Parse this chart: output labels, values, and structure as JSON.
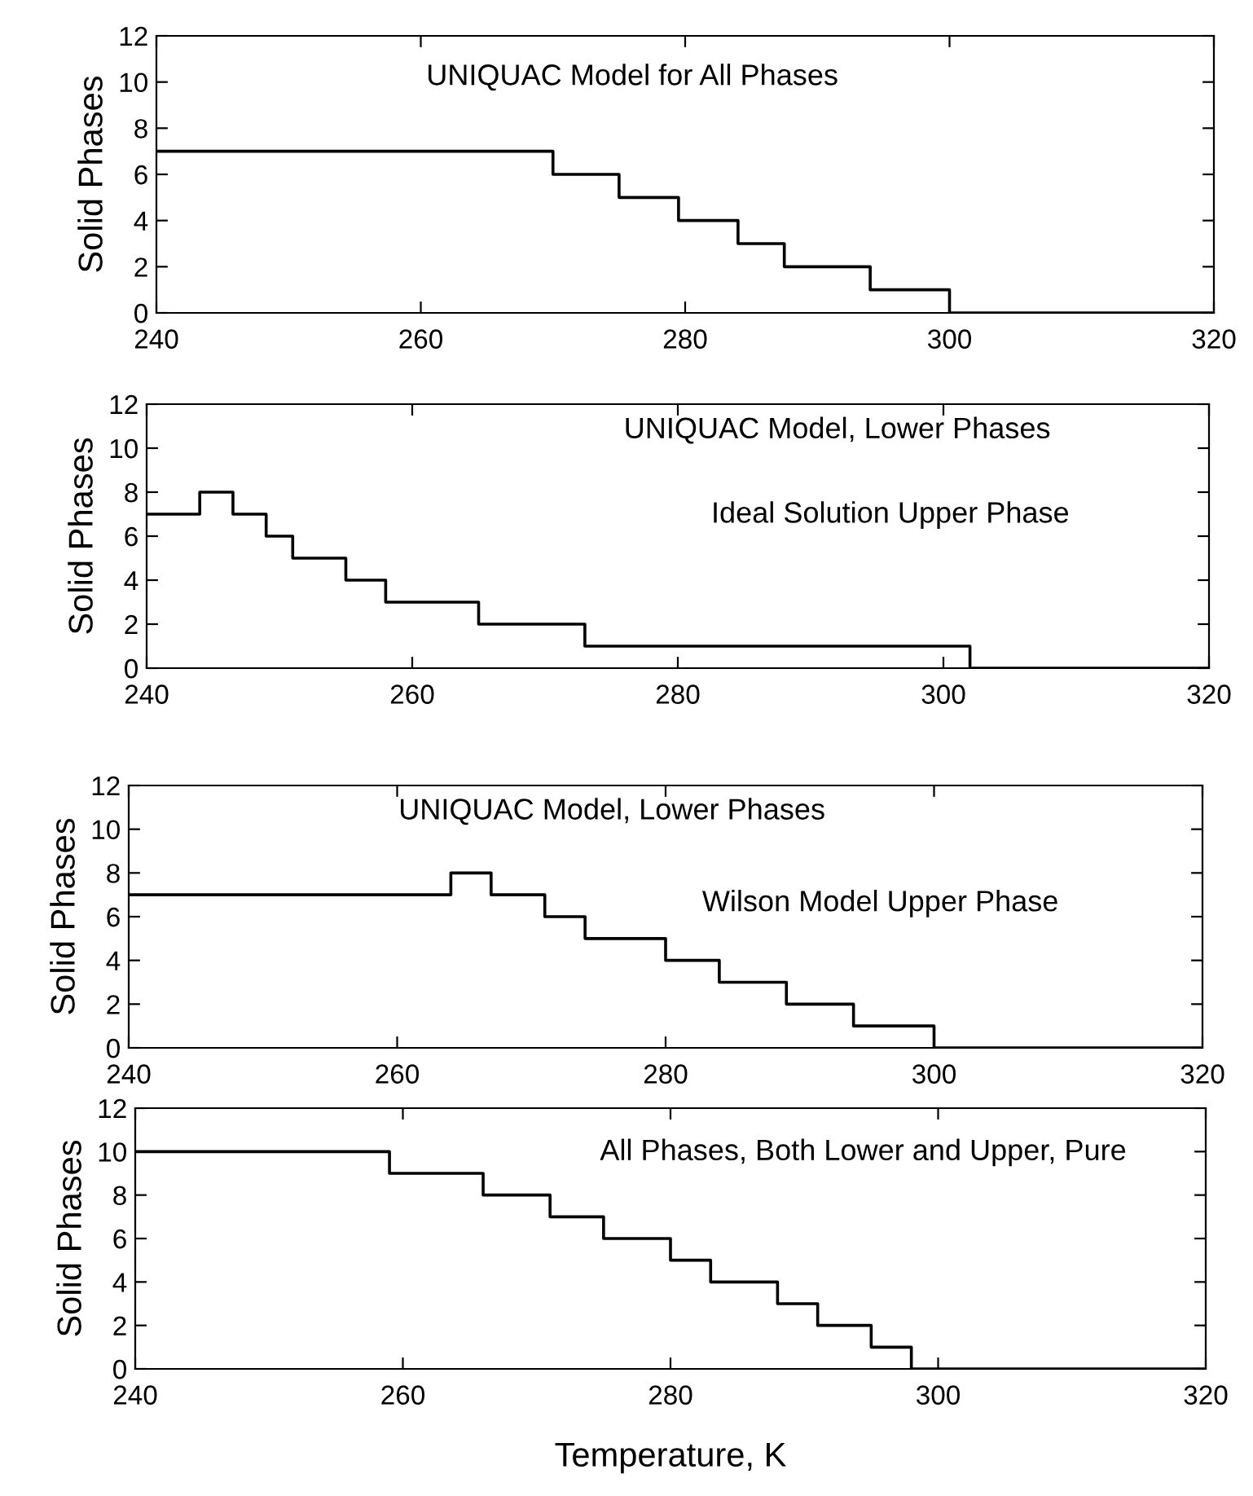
{
  "chart_data": [
    {
      "type": "step",
      "ylabel": "Solid Phases",
      "annotations": [
        "UNIQUAC Model for All Phases"
      ],
      "xlim": [
        240,
        320
      ],
      "xticks": [
        240,
        260,
        280,
        300,
        320
      ],
      "ylim": [
        0,
        12
      ],
      "yticks": [
        0,
        2,
        4,
        6,
        8,
        10,
        12
      ],
      "grid": false,
      "legend": false,
      "series": [
        {
          "color": "#000000",
          "x": [
            240,
            270,
            275,
            279.5,
            284,
            287.5,
            294,
            300,
            320
          ],
          "values": [
            7,
            6,
            5,
            4,
            3,
            2,
            1,
            0,
            0
          ]
        }
      ]
    },
    {
      "type": "step",
      "ylabel": "Solid Phases",
      "annotations": [
        "UNIQUAC Model, Lower Phases",
        "Ideal Solution Upper Phase"
      ],
      "xlim": [
        240,
        320
      ],
      "xticks": [
        240,
        260,
        280,
        300,
        320
      ],
      "ylim": [
        0,
        12
      ],
      "yticks": [
        0,
        2,
        4,
        6,
        8,
        10,
        12
      ],
      "grid": false,
      "legend": false,
      "series": [
        {
          "color": "#000000",
          "x": [
            240,
            244,
            246.5,
            249,
            251,
            255,
            258,
            265,
            273,
            302,
            320
          ],
          "values": [
            7,
            8,
            7,
            6,
            5,
            4,
            3,
            2,
            1,
            0,
            0
          ]
        }
      ]
    },
    {
      "type": "step",
      "ylabel": "Solid Phases",
      "annotations": [
        "UNIQUAC Model, Lower Phases",
        "Wilson Model Upper Phase"
      ],
      "xlim": [
        240,
        320
      ],
      "xticks": [
        240,
        260,
        280,
        300,
        320
      ],
      "ylim": [
        0,
        12
      ],
      "yticks": [
        0,
        2,
        4,
        6,
        8,
        10,
        12
      ],
      "grid": false,
      "legend": false,
      "series": [
        {
          "color": "#000000",
          "x": [
            240,
            264,
            267,
            271,
            274,
            280,
            284,
            289,
            294,
            300,
            320
          ],
          "values": [
            7,
            8,
            7,
            6,
            5,
            4,
            3,
            2,
            1,
            0,
            0
          ]
        }
      ]
    },
    {
      "type": "step",
      "ylabel": "Solid Phases",
      "xlabel": "Temperature, K",
      "annotations": [
        "All Phases, Both Lower and Upper, Pure"
      ],
      "xlim": [
        240,
        320
      ],
      "xticks": [
        240,
        260,
        280,
        300,
        320
      ],
      "ylim": [
        0,
        12
      ],
      "yticks": [
        0,
        2,
        4,
        6,
        8,
        10,
        12
      ],
      "grid": false,
      "legend": false,
      "series": [
        {
          "color": "#000000",
          "x": [
            240,
            259,
            266,
            271,
            275,
            280,
            283,
            288,
            291,
            295,
            298,
            320
          ],
          "values": [
            10,
            9,
            8,
            7,
            6,
            5,
            4,
            3,
            2,
            1,
            0,
            0
          ]
        }
      ]
    }
  ]
}
